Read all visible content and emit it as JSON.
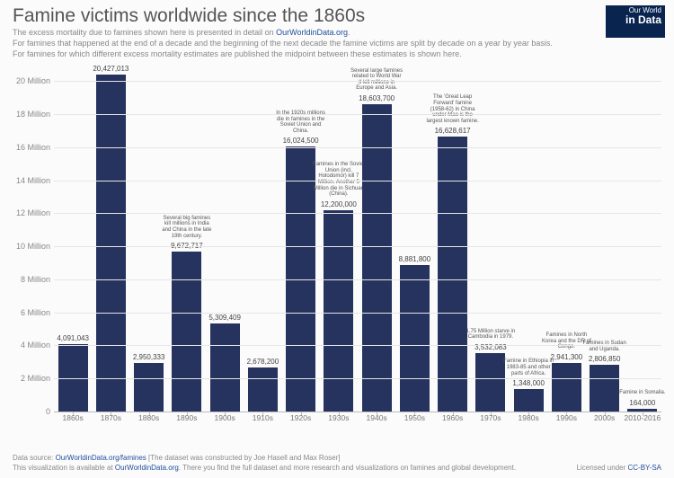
{
  "header": {
    "title": "Famine victims worldwide since the 1860s",
    "sub1_a": "The excess mortality due to famines shown here is presented in detail on ",
    "sub1_link": "OurWorldinData.org",
    "sub1_b": ".",
    "sub2": "For famines that happened at the end of a decade and the beginning of the next decade the famine victims are split by decade on a year by year basis.",
    "sub3": "For famines for which different excess mortality estimates are published the midpoint between these estimates is shown here."
  },
  "logo": {
    "l1": "Our World",
    "l2": "in Data"
  },
  "chart": {
    "type": "bar",
    "ymax": 21000000,
    "yticks": [
      {
        "v": 0,
        "label": "0"
      },
      {
        "v": 2000000,
        "label": "2 Million"
      },
      {
        "v": 4000000,
        "label": "4 Million"
      },
      {
        "v": 6000000,
        "label": "6 Million"
      },
      {
        "v": 8000000,
        "label": "8 Million"
      },
      {
        "v": 10000000,
        "label": "10 Million"
      },
      {
        "v": 12000000,
        "label": "12 Million"
      },
      {
        "v": 14000000,
        "label": "14 Million"
      },
      {
        "v": 16000000,
        "label": "16 Million"
      },
      {
        "v": 18000000,
        "label": "18 Million"
      },
      {
        "v": 20000000,
        "label": "20 Million"
      }
    ],
    "bar_color": "#27335f",
    "grid_color": "#e6e6e6",
    "background_color": "#fbfbfb",
    "bars": [
      {
        "cat": "1860s",
        "value": 4091043,
        "label": "4,091,043",
        "ann": ""
      },
      {
        "cat": "1870s",
        "value": 20427013,
        "label": "20,427,013",
        "ann": ""
      },
      {
        "cat": "1880s",
        "value": 2950333,
        "label": "2,950,333",
        "ann": ""
      },
      {
        "cat": "1890s",
        "value": 9672717,
        "label": "9,672,717",
        "ann": "Several big famines kill millions in India and China in the late 19th century."
      },
      {
        "cat": "1900s",
        "value": 5309409,
        "label": "5,309,409",
        "ann": ""
      },
      {
        "cat": "1910s",
        "value": 2678200,
        "label": "2,678,200",
        "ann": ""
      },
      {
        "cat": "1920s",
        "value": 16024500,
        "label": "16,024,500",
        "ann": "In the 1920s millions die in famines in the Soviet Union and China."
      },
      {
        "cat": "1930s",
        "value": 12200000,
        "label": "12,200,000",
        "ann": "Famines in the Soviet Union (incl. Holodomor) kill 7 Million. Another 5 Million die in Sichuan (China)."
      },
      {
        "cat": "1940s",
        "value": 18603700,
        "label": "18,603,700",
        "ann": "Several large famines related to World War II kill millions in Europe and Asia."
      },
      {
        "cat": "1950s",
        "value": 8881800,
        "label": "8,881,800",
        "ann": ""
      },
      {
        "cat": "1960s",
        "value": 16628617,
        "label": "16,628,617",
        "ann": "The 'Great Leap Forward' famine (1958-62) in China under Mao is the largest known famine."
      },
      {
        "cat": "1970s",
        "value": 3532083,
        "label": "3,532,083",
        "ann": "1.75 Million starve in Cambodia in 1979."
      },
      {
        "cat": "1980s",
        "value": 1348000,
        "label": "1,348,000",
        "ann": "Famine in Ethiopia in 1983-85 and other parts of Africa."
      },
      {
        "cat": "1990s",
        "value": 2941300,
        "label": "2,941,300",
        "ann": "Famines in North Korea and the DR of Congo."
      },
      {
        "cat": "2000s",
        "value": 2806850,
        "label": "2,806,850",
        "ann": "Famines in Sudan and Uganda."
      },
      {
        "cat": "2010-2016",
        "value": 164000,
        "label": "164,000",
        "ann": "Famine in Somalia."
      }
    ]
  },
  "footer": {
    "l1_a": "Data source: ",
    "l1_link": "OurWorldinData.org/famines",
    "l1_b": " [The dataset was constructed by Joe Hasell and Max Roser]",
    "l2_a": "This visualization is available at ",
    "l2_link": "OurWorldinData.org",
    "l2_b": ". There you find the full dataset and more research and visualizations on famines and global development.",
    "license_a": "Licensed under ",
    "license_link": "CC-BY-SA"
  }
}
